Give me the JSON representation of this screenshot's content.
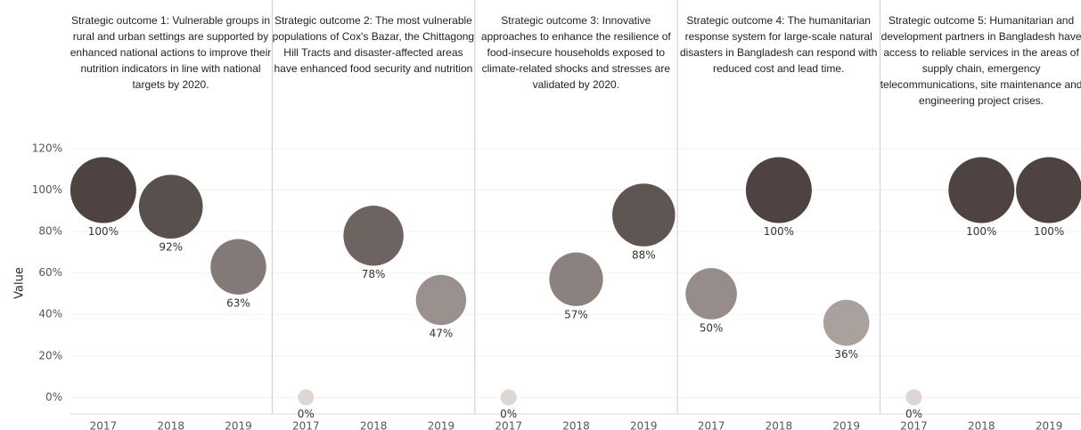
{
  "chart_data": [
    {
      "type": "bubble",
      "title": "Strategic outcome 1: Vulnerable groups in rural and urban settings are supported by enhanced national actions to improve their nutrition indicators in line with national targets by 2020.",
      "y_label": "Value",
      "categories": [
        "2017",
        "2018",
        "2019"
      ],
      "values": [
        100,
        92,
        63
      ],
      "value_labels": [
        "100%",
        "92%",
        "63%"
      ],
      "ylim": [
        -8,
        123
      ],
      "yticks": [
        {
          "value": 0,
          "label": "0%"
        },
        {
          "value": 20,
          "label": "20%"
        },
        {
          "value": 40,
          "label": "40%"
        },
        {
          "value": 60,
          "label": "60%"
        },
        {
          "value": 80,
          "label": "80%"
        },
        {
          "value": 100,
          "label": "100%"
        },
        {
          "value": 120,
          "label": "120%"
        }
      ],
      "grid": true,
      "color_scale": [
        "#ddd6d3",
        "#4e4340"
      ]
    },
    {
      "type": "bubble",
      "title": "Strategic outcome 2: The most vulnerable populations of Cox's Bazar, the Chittagong Hill Tracts and disaster-affected areas have enhanced food security and nutrition",
      "categories": [
        "2017",
        "2018",
        "2019"
      ],
      "values": [
        0,
        78,
        47
      ],
      "value_labels": [
        "0%",
        "78%",
        "47%"
      ],
      "ylim": [
        -8,
        123
      ],
      "color_scale": [
        "#ddd6d3",
        "#4e4340"
      ]
    },
    {
      "type": "bubble",
      "title": "Strategic outcome 3: Innovative approaches to enhance the resilience of food-insecure households exposed to climate-related shocks and stresses are validated by 2020.",
      "categories": [
        "2017",
        "2018",
        "2019"
      ],
      "values": [
        0,
        57,
        88
      ],
      "value_labels": [
        "0%",
        "57%",
        "88%"
      ],
      "ylim": [
        -8,
        123
      ],
      "color_scale": [
        "#ddd6d3",
        "#4e4340"
      ]
    },
    {
      "type": "bubble",
      "title": "Strategic outcome 4: The humanitarian response system for large-scale natural disasters in Bangladesh can respond with reduced cost and lead time.",
      "categories": [
        "2017",
        "2018",
        "2019"
      ],
      "values": [
        50,
        100,
        36
      ],
      "value_labels": [
        "50%",
        "100%",
        "36%"
      ],
      "ylim": [
        -8,
        123
      ],
      "color_scale": [
        "#ddd6d3",
        "#4e4340"
      ]
    },
    {
      "type": "bubble",
      "title": "Strategic outcome 5: Humanitarian and development partners in Bangladesh have access to reliable services in the areas of supply chain, emergency telecommunications, site maintenance and engineering project crises.",
      "categories": [
        "2017",
        "2018",
        "2019"
      ],
      "values": [
        0,
        100,
        100
      ],
      "value_labels": [
        "0%",
        "100%",
        "100%"
      ],
      "ylim": [
        -8,
        123
      ],
      "color_scale": [
        "#ddd6d3",
        "#4e4340"
      ]
    }
  ]
}
